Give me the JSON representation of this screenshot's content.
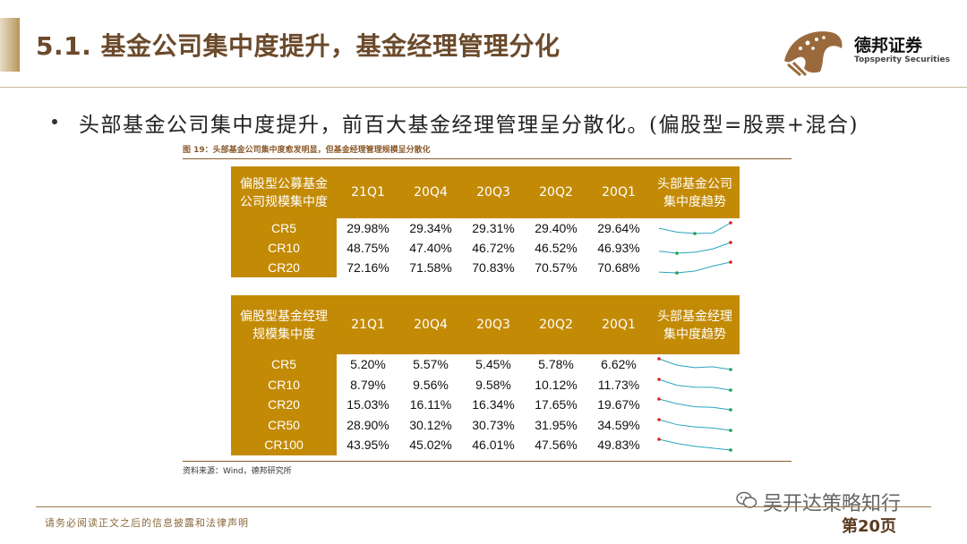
{
  "slide": {
    "title": "5.1. 基金公司集中度提升，基金经理管理分化",
    "bullet": "头部基金公司集中度提升，前百大基金经理管理呈分散化。(偏股型=股票+混合)",
    "figure_caption": "图 19：头部基金公司集中度愈发明显，但基金经理管理规模呈分散化",
    "source": "资料来源：Wind，德邦研究所",
    "disclaimer": "请务必阅读正文之后的信息披露和法律声明",
    "page_number": "第20页",
    "watermark": "吴开达策略知行"
  },
  "logo": {
    "name_cn": "德邦证券",
    "name_en": "Topsperity Securities",
    "color": "#9b6a3c"
  },
  "colors": {
    "header_gold": "#c38a05",
    "title_brown": "#6b4a2b",
    "spark_line": "#2aa5c0",
    "spark_high": "#e02020",
    "spark_low": "#1a9f4a"
  },
  "table1": {
    "corner": [
      "偏股型公募基金",
      "公司规模集中度"
    ],
    "columns": [
      "21Q1",
      "20Q4",
      "20Q3",
      "20Q2",
      "20Q1"
    ],
    "trend_header": [
      "头部基金公司",
      "集中度趋势"
    ],
    "rows": [
      {
        "label": "CR5",
        "cells": [
          "29.98%",
          "29.34%",
          "29.31%",
          "29.40%",
          "29.64%"
        ],
        "nums": [
          29.98,
          29.34,
          29.31,
          29.4,
          29.64
        ]
      },
      {
        "label": "CR10",
        "cells": [
          "48.75%",
          "47.40%",
          "46.72%",
          "46.52%",
          "46.93%"
        ],
        "nums": [
          48.75,
          47.4,
          46.72,
          46.52,
          46.93
        ]
      },
      {
        "label": "CR20",
        "cells": [
          "72.16%",
          "71.58%",
          "70.83%",
          "70.57%",
          "70.68%"
        ],
        "nums": [
          72.16,
          71.58,
          70.83,
          70.57,
          70.68
        ]
      }
    ]
  },
  "table2": {
    "corner": [
      "偏股型基金经理",
      "规模集中度"
    ],
    "columns": [
      "21Q1",
      "20Q4",
      "20Q3",
      "20Q2",
      "20Q1"
    ],
    "trend_header": [
      "头部基金经理",
      "集中度趋势"
    ],
    "rows": [
      {
        "label": "CR5",
        "cells": [
          "5.20%",
          "5.57%",
          "5.45%",
          "5.78%",
          "6.62%"
        ],
        "nums": [
          5.2,
          5.57,
          5.45,
          5.78,
          6.62
        ]
      },
      {
        "label": "CR10",
        "cells": [
          "8.79%",
          "9.56%",
          "9.58%",
          "10.12%",
          "11.73%"
        ],
        "nums": [
          8.79,
          9.56,
          9.58,
          10.12,
          11.73
        ]
      },
      {
        "label": "CR20",
        "cells": [
          "15.03%",
          "16.11%",
          "16.34%",
          "17.65%",
          "19.67%"
        ],
        "nums": [
          15.03,
          16.11,
          16.34,
          17.65,
          19.67
        ]
      },
      {
        "label": "CR50",
        "cells": [
          "28.90%",
          "30.12%",
          "30.73%",
          "31.95%",
          "34.59%"
        ],
        "nums": [
          28.9,
          30.12,
          30.73,
          31.95,
          34.59
        ]
      },
      {
        "label": "CR100",
        "cells": [
          "43.95%",
          "45.02%",
          "46.01%",
          "47.56%",
          "49.83%"
        ],
        "nums": [
          43.95,
          45.02,
          46.01,
          47.56,
          49.83
        ]
      }
    ]
  }
}
